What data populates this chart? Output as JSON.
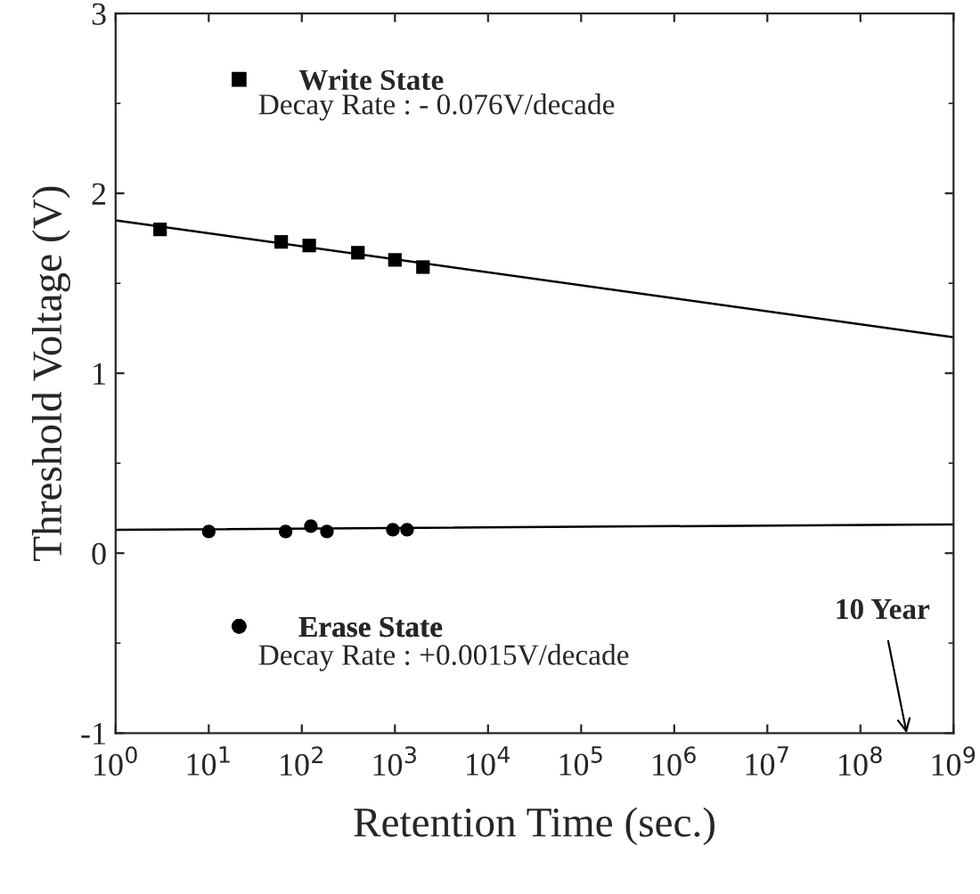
{
  "chart_data": {
    "type": "scatter",
    "xlabel": "Retention Time (sec.)",
    "ylabel": "Threshold Voltage (V)",
    "log": "x",
    "xlim": [
      1,
      1000000000
    ],
    "ylim": [
      -1,
      3
    ],
    "xticks": [
      {
        "value": 1,
        "label": "10$^{0}$"
      },
      {
        "value": 10,
        "label": "10$^{1}$"
      },
      {
        "value": 100,
        "label": "10$^{2}$"
      },
      {
        "value": 1000,
        "label": "10$^{3}$"
      },
      {
        "value": 10000,
        "label": "10$^{4}$"
      },
      {
        "value": 100000,
        "label": "10$^{5}$"
      },
      {
        "value": 1000000,
        "label": "10$^{6}$"
      },
      {
        "value": 10000000,
        "label": "10$^{7}$"
      },
      {
        "value": 100000000,
        "label": "10$^{8}$"
      },
      {
        "value": 1000000000,
        "label": "10$^{9}$"
      }
    ],
    "yticks": [
      -1,
      0,
      1,
      2,
      3
    ],
    "grid": false,
    "legend": "left",
    "series": [
      {
        "name": "Write State",
        "color": "#000000",
        "marker": "square",
        "x": [
          3,
          60,
          120,
          400,
          1000,
          2000
        ],
        "values": [
          1.8,
          1.73,
          1.71,
          1.67,
          1.63,
          1.59
        ]
      },
      {
        "name": "Erase State",
        "color": "#000000",
        "marker": "circle",
        "x": [
          10,
          67,
          125,
          186,
          950,
          1350
        ],
        "values": [
          0.12,
          0.12,
          0.15,
          0.12,
          0.13,
          0.13
        ]
      },
      {
        "type": "line",
        "color": "#000000",
        "marker": "none",
        "x": [
          1,
          1000000000
        ],
        "values": [
          1.85,
          1.2
        ]
      },
      {
        "type": "line",
        "color": "#000000",
        "marker": "none",
        "x": [
          1,
          1000000000
        ],
        "values": [
          0.13,
          0.16
        ]
      }
    ],
    "annotations": [
      "Decay Rate : - 0.076V/decade",
      "Decay Rate : +0.0015V/decade",
      "10 Year"
    ]
  }
}
